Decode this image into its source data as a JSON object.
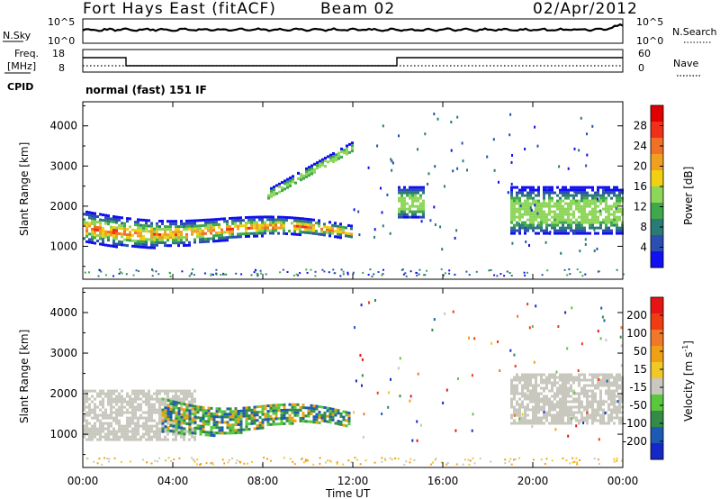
{
  "header": {
    "station": "Fort Hays East (fitACF)",
    "beam": "Beam 02",
    "date": "02/Apr/2012"
  },
  "sky_panel": {
    "left_label": "N.Sky",
    "left_ticks": [
      "10^5",
      "10^0"
    ],
    "right_label": "N.Search",
    "right_ticks": [
      "10^5",
      "10^0"
    ]
  },
  "freq_panel": {
    "left_label_1": "Freq.",
    "left_label_2": "[MHz]",
    "left_ticks": [
      "18",
      "8"
    ],
    "right_label": "Nave",
    "right_ticks": [
      "60",
      "0"
    ],
    "cpid_label": "CPID",
    "mode_text": "normal (fast) 151 IF"
  },
  "chart_data": [
    {
      "type": "heatmap",
      "title": "",
      "xlabel": "Time UT",
      "ylabel": "Slant Range [km]",
      "xlim": [
        "00:00",
        "00:00"
      ],
      "ylim": [
        180,
        4600
      ],
      "x_ticks": [
        "00:00",
        "04:00",
        "08:00",
        "12:00",
        "16:00",
        "20:00",
        "00:00"
      ],
      "y_ticks": [
        1000,
        2000,
        3000,
        4000
      ],
      "colorbar": {
        "label": "Power [dB]",
        "ticks": [
          "4",
          "8",
          "12",
          "16",
          "20",
          "24",
          "28"
        ],
        "colors": [
          "#1010f0",
          "#2b4fb0",
          "#2a7a76",
          "#3fa84a",
          "#8ed65a",
          "#f0d010",
          "#f0a020",
          "#f07028",
          "#f03018",
          "#e00000"
        ]
      },
      "echo_regions": [
        {
          "feature": "main band",
          "time_start_h": 0.0,
          "time_end_h": 11.9,
          "range_start_km": 1100,
          "range_end_km": 1900
        },
        {
          "feature": "arc",
          "time_start_h": 8.2,
          "time_end_h": 12.0,
          "range_start_km": 2300,
          "range_end_km": 3500
        },
        {
          "feature": "patch",
          "time_start_h": 14.0,
          "time_end_h": 15.2,
          "range_start_km": 1700,
          "range_end_km": 2500
        },
        {
          "feature": "late band",
          "time_start_h": 19.0,
          "time_end_h": 24.0,
          "range_start_km": 1300,
          "range_end_km": 2500
        }
      ]
    },
    {
      "type": "heatmap",
      "title": "",
      "xlabel": "Time UT",
      "ylabel": "Slant Range [km]",
      "xlim": [
        "00:00",
        "00:00"
      ],
      "ylim": [
        180,
        4600
      ],
      "x_ticks": [
        "00:00",
        "04:00",
        "08:00",
        "12:00",
        "16:00",
        "20:00",
        "00:00"
      ],
      "y_ticks": [
        1000,
        2000,
        3000,
        4000
      ],
      "colorbar": {
        "label": "Velocity [m s",
        "label_sup": "-1",
        "label_end": "]",
        "ticks": [
          "200",
          "100",
          "50",
          "15",
          "-15",
          "-50",
          "-100",
          "-200"
        ],
        "colors": [
          "#1428c8",
          "#1e5ab4",
          "#328c46",
          "#5ac83c",
          "#c8c8be",
          "#f0c828",
          "#f0a014",
          "#f07828",
          "#f03c14",
          "#e61414"
        ]
      },
      "echo_regions": [
        {
          "feature": "ground scatter",
          "time_start_h": 0.0,
          "time_end_h": 5.0,
          "range_start_km": 900,
          "range_end_km": 2100
        },
        {
          "feature": "main band",
          "time_start_h": 3.5,
          "time_end_h": 11.9,
          "range_start_km": 1100,
          "range_end_km": 1900
        },
        {
          "feature": "ground scatter",
          "time_start_h": 19.0,
          "time_end_h": 24.0,
          "range_start_km": 1300,
          "range_end_km": 2500
        }
      ]
    }
  ]
}
